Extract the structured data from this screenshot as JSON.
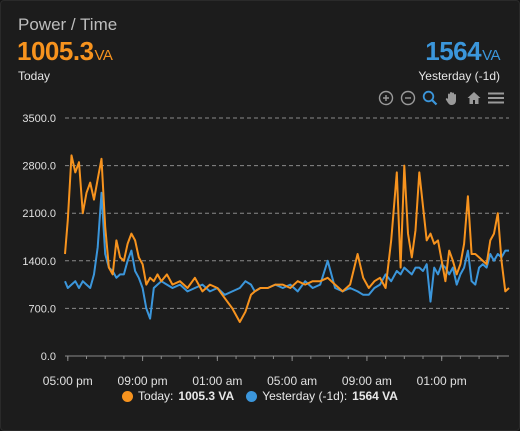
{
  "header": {
    "title": "Power / Time",
    "today_value": "1005.3",
    "today_unit": "VA",
    "today_label": "Today",
    "yesterday_value": "1564",
    "yesterday_unit": "VA",
    "yesterday_label": "Yesterday (-1d)"
  },
  "toolbar": {
    "icons": [
      "zoom-in-icon",
      "zoom-out-icon",
      "selection-zoom-icon",
      "pan-hand-icon",
      "home-reset-icon",
      "menu-icon"
    ]
  },
  "colors": {
    "today": "#f7931e",
    "yesterday": "#3b96db",
    "grid": "#8a8a8a",
    "background": "#1c1c1c"
  },
  "legend": {
    "today_label": "Today:",
    "today_value": "1005.3 VA",
    "yesterday_label": "Yesterday (-1d):",
    "yesterday_value": "1564 VA"
  },
  "chart_data": {
    "type": "line",
    "title": "Power / Time",
    "xlabel": "",
    "ylabel": "",
    "ylim": [
      0,
      3500
    ],
    "yticks": [
      "0.0",
      "700.0",
      "1400.0",
      "2100.0",
      "2800.0",
      "3500.0"
    ],
    "xlim_hours": [
      16.85,
      40.6
    ],
    "xticks": [
      {
        "label": "05:00 pm",
        "hour": 17
      },
      {
        "label": "09:00 pm",
        "hour": 21
      },
      {
        "label": "01:00 am",
        "hour": 25
      },
      {
        "label": "05:00 am",
        "hour": 29
      },
      {
        "label": "09:00 am",
        "hour": 33
      },
      {
        "label": "01:00 pm",
        "hour": 37
      }
    ],
    "grid": "horizontal-dashed",
    "legend_position": "bottom",
    "series": [
      {
        "name": "Today",
        "x": [
          16.85,
          17.0,
          17.2,
          17.4,
          17.6,
          17.8,
          18.0,
          18.2,
          18.4,
          18.6,
          18.8,
          19.0,
          19.2,
          19.4,
          19.6,
          19.8,
          20.0,
          20.2,
          20.4,
          20.6,
          20.8,
          21.0,
          21.2,
          21.4,
          21.6,
          21.8,
          22.0,
          22.3,
          22.6,
          23.0,
          23.4,
          23.8,
          24.2,
          24.6,
          25.0,
          25.4,
          25.8,
          26.2,
          26.5,
          26.8,
          27.0,
          27.3,
          27.7,
          28.1,
          28.5,
          28.9,
          29.3,
          29.7,
          30.1,
          30.5,
          30.9,
          31.3,
          31.7,
          32.1,
          32.5,
          32.8,
          33.1,
          33.4,
          33.7,
          34.0,
          34.3,
          34.6,
          34.8,
          35.0,
          35.2,
          35.4,
          35.6,
          35.8,
          36.0,
          36.2,
          36.4,
          36.6,
          36.8,
          37.0,
          37.2,
          37.4,
          37.6,
          37.8,
          38.0,
          38.2,
          38.4,
          38.6,
          38.8,
          39.0,
          39.2,
          39.4,
          39.6,
          39.8,
          40.0,
          40.2,
          40.4,
          40.6
        ],
        "y": [
          1500,
          2000,
          2950,
          2700,
          2850,
          2100,
          2400,
          2550,
          2300,
          2600,
          2900,
          1900,
          1300,
          1200,
          1700,
          1450,
          1400,
          1650,
          1800,
          1700,
          1450,
          1350,
          1050,
          1150,
          1100,
          1200,
          1100,
          1200,
          1050,
          1100,
          1000,
          1150,
          950,
          1050,
          1000,
          850,
          700,
          500,
          650,
          900,
          950,
          1000,
          1000,
          1050,
          1050,
          1000,
          1100,
          1050,
          1100,
          1100,
          1150,
          1050,
          950,
          1050,
          1500,
          1150,
          1000,
          1100,
          1150,
          1000,
          1700,
          2700,
          1300,
          2800,
          1800,
          1450,
          1850,
          2700,
          2200,
          1700,
          1800,
          1650,
          1700,
          1400,
          1100,
          1550,
          1400,
          1200,
          1350,
          1650,
          2350,
          1500,
          1500,
          1450,
          1400,
          1350,
          1700,
          1800,
          2100,
          1400,
          950,
          1000
        ]
      },
      {
        "name": "Yesterday (-1d)",
        "x": [
          16.85,
          17.0,
          17.2,
          17.4,
          17.6,
          17.8,
          18.0,
          18.2,
          18.4,
          18.6,
          18.8,
          19.0,
          19.2,
          19.4,
          19.6,
          19.8,
          20.0,
          20.2,
          20.4,
          20.6,
          20.8,
          21.0,
          21.2,
          21.4,
          21.6,
          21.8,
          22.0,
          22.3,
          22.6,
          23.0,
          23.4,
          23.8,
          24.2,
          24.6,
          25.0,
          25.4,
          25.8,
          26.2,
          26.5,
          26.8,
          27.0,
          27.3,
          27.7,
          28.1,
          28.5,
          28.9,
          29.3,
          29.7,
          30.1,
          30.5,
          30.9,
          31.3,
          31.7,
          32.1,
          32.5,
          32.8,
          33.1,
          33.4,
          33.7,
          34.0,
          34.3,
          34.6,
          34.8,
          35.0,
          35.2,
          35.4,
          35.6,
          35.8,
          36.0,
          36.2,
          36.4,
          36.6,
          36.8,
          37.0,
          37.2,
          37.4,
          37.6,
          37.8,
          38.0,
          38.2,
          38.4,
          38.6,
          38.8,
          39.0,
          39.2,
          39.4,
          39.6,
          39.8,
          40.0,
          40.2,
          40.4,
          40.6
        ],
        "y": [
          1100,
          1000,
          1050,
          1100,
          1000,
          1100,
          1050,
          1000,
          1200,
          1600,
          2400,
          1500,
          1300,
          1250,
          1150,
          1200,
          1200,
          1400,
          1550,
          1250,
          1150,
          1000,
          700,
          550,
          1000,
          1050,
          1100,
          1050,
          1000,
          1050,
          950,
          1000,
          1050,
          950,
          1000,
          900,
          950,
          1000,
          1100,
          1050,
          950,
          1000,
          1000,
          1050,
          1000,
          1050,
          950,
          1100,
          1000,
          1050,
          1400,
          1000,
          950,
          1000,
          950,
          900,
          900,
          1000,
          1050,
          1200,
          1100,
          1250,
          1200,
          1300,
          1250,
          1200,
          1300,
          1300,
          1250,
          1350,
          800,
          1300,
          1200,
          1350,
          1300,
          1200,
          1300,
          1050,
          1200,
          1300,
          1550,
          1100,
          1050,
          1300,
          1350,
          1300,
          1500,
          1400,
          1500,
          1450,
          1550,
          1550
        ]
      }
    ]
  }
}
